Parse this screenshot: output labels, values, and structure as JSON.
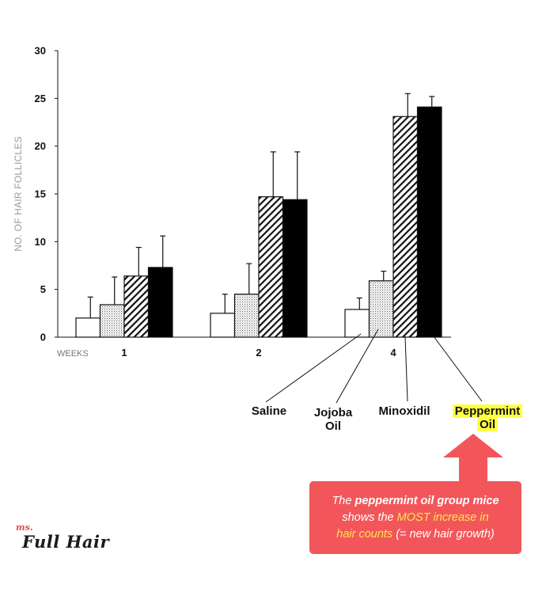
{
  "chart_data": {
    "type": "bar",
    "title": "",
    "xlabel": "WEEKS",
    "ylabel": "NO. OF HAIR FOLLICLES",
    "ylim": [
      0,
      30
    ],
    "yticks": [
      0,
      5,
      10,
      15,
      20,
      25,
      30
    ],
    "categories": [
      "1",
      "2",
      "4"
    ],
    "legend": "none",
    "grid": false,
    "series": [
      {
        "name": "Saline",
        "pattern": "white",
        "values": [
          2.0,
          2.5,
          2.9
        ],
        "errors": [
          2.2,
          2.0,
          1.2
        ]
      },
      {
        "name": "Jojoba Oil",
        "pattern": "dotted",
        "values": [
          3.4,
          4.5,
          5.9
        ],
        "errors": [
          2.9,
          3.2,
          1.0
        ]
      },
      {
        "name": "Minoxidil",
        "pattern": "hatched",
        "values": [
          6.4,
          14.7,
          23.1
        ],
        "errors": [
          3.0,
          4.7,
          2.4
        ]
      },
      {
        "name": "Peppermint Oil",
        "pattern": "black",
        "values": [
          7.3,
          14.4,
          24.1
        ],
        "errors": [
          3.3,
          5.0,
          1.1
        ]
      }
    ]
  },
  "labels": {
    "saline": "Saline",
    "jojoba_1": "Jojoba",
    "jojoba_2": "Oil",
    "minoxidil": "Minoxidil",
    "peppermint_1": "Peppermint",
    "peppermint_2": "Oil"
  },
  "callout": {
    "line1_a": "The ",
    "line1_b": "peppermint oil group mice",
    "line2_a": "shows the ",
    "line2_b": "MOST increase in",
    "line3_a": "hair counts",
    "line3_b": " (= new hair growth)",
    "color": "#f2565a"
  },
  "logo": {
    "small": "ms.",
    "main": "Full Hair"
  }
}
